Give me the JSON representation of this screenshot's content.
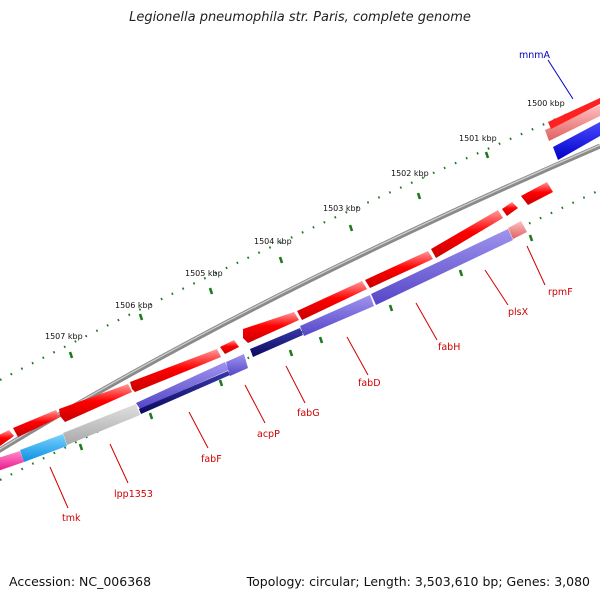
{
  "title": "Legionella pneumophila str. Paris, complete genome",
  "accession": "Accession: NC_006368",
  "topology": "Topology: circular; Length: 3,503,610 bp; Genes: 3,080",
  "ticks": [
    "1500 kbp",
    "1501 kbp",
    "1502 kbp",
    "1503 kbp",
    "1504 kbp",
    "1505 kbp",
    "1506 kbp",
    "1507 kbp"
  ],
  "genes": [
    "mnmA",
    "rpmF",
    "plsX",
    "fabH",
    "fabD",
    "fabG",
    "acpP",
    "fabF",
    "lpp1353",
    "tmk"
  ],
  "colors": {
    "backbone": "#8a8a8a",
    "tick": "#1f7a1f",
    "feature_red": "#ff0000",
    "feature_pink": "#f07a7a",
    "feature_blue": "#0000e0",
    "feature_purple": "#6f5fd8",
    "feature_navy": "#10107a",
    "feature_gray": "#bbbbbb",
    "feature_cyan": "#1ea8ee",
    "feature_magenta": "#ff2fa0",
    "label_red": "#d00000",
    "label_blue": "#0000c0"
  }
}
